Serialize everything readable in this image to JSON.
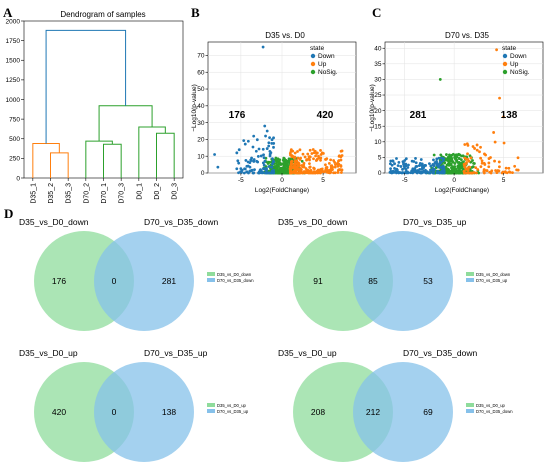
{
  "panels": {
    "a_letter": "A",
    "b_letter": "B",
    "c_letter": "C",
    "d_letter": "D"
  },
  "colors": {
    "down": "#1f77b4",
    "up": "#ff7f0e",
    "nosig": "#2ca02c",
    "dendro_blue": "#1f77b4",
    "dendro_orange": "#ff7f0e",
    "dendro_green": "#2ca02c",
    "venn_green": "#8fdc9c",
    "venn_blue": "#86c1ea"
  },
  "chart_data": [
    {
      "type": "dendrogram",
      "title": "Dendrogram of samples",
      "yticks": [
        "0",
        "250",
        "500",
        "750",
        "1000",
        "1250",
        "1500",
        "1750",
        "2000"
      ],
      "ylim": [
        0,
        2000
      ],
      "leaves": [
        "D35_1",
        "D35_2",
        "D35_3",
        "D70_2",
        "D70_1",
        "D70_3",
        "D0_1",
        "D0_2",
        "D0_3"
      ],
      "merges": [
        {
          "left": "D35_2",
          "right": "D35_3",
          "height": 320,
          "color": "orange"
        },
        {
          "left": "D35_1",
          "right": "D35_2+D35_3",
          "height": 440,
          "color": "orange"
        },
        {
          "left": "D70_1",
          "right": "D70_3",
          "height": 430,
          "color": "green"
        },
        {
          "left": "D70_2",
          "right": "D70_1+D70_3",
          "height": 470,
          "color": "green"
        },
        {
          "left": "D0_2",
          "right": "D0_3",
          "height": 570,
          "color": "green"
        },
        {
          "left": "D0_1",
          "right": "D0_2+D0_3",
          "height": 650,
          "color": "green"
        },
        {
          "left": "D70 cluster",
          "right": "D0 cluster",
          "height": 920,
          "color": "green"
        },
        {
          "left": "D35 cluster",
          "right": "D70+D0 cluster",
          "height": 1880,
          "color": "blue"
        }
      ]
    },
    {
      "type": "scatter",
      "title": "D35 vs. D0",
      "xlabel": "Log2(FoldChange)",
      "ylabel": "−Log10(p-value)",
      "xlim": [
        -9,
        9
      ],
      "ylim": [
        0,
        78
      ],
      "xticks": [
        "-5",
        "0",
        "5"
      ],
      "yticks": [
        "0",
        "10",
        "20",
        "30",
        "40",
        "50",
        "60",
        "70"
      ],
      "legend_title": "state",
      "legend": [
        "Down",
        "Up",
        "NoSig."
      ],
      "down_count": "176",
      "up_count": "420",
      "highlighted_points": [
        {
          "x": -2.3,
          "y": 75,
          "state": "Down"
        },
        {
          "x": -8.2,
          "y": 11,
          "state": "Down"
        },
        {
          "x": -7.8,
          "y": 3.5,
          "state": "Down"
        },
        {
          "x": -2.1,
          "y": 28,
          "state": "Down"
        },
        {
          "x": -1.8,
          "y": 25,
          "state": "Down"
        },
        {
          "x": -2.0,
          "y": 22,
          "state": "Down"
        },
        {
          "x": -1.6,
          "y": 18,
          "state": "Down"
        },
        {
          "x": 3.8,
          "y": 14,
          "state": "Up"
        },
        {
          "x": 4.5,
          "y": 9,
          "state": "Up"
        },
        {
          "x": 6.5,
          "y": 5,
          "state": "Up"
        }
      ]
    },
    {
      "type": "scatter",
      "title": "D70 vs. D35",
      "xlabel": "Log2(FoldChange)",
      "ylabel": "−Log10(p-value)",
      "xlim": [
        -7,
        9
      ],
      "ylim": [
        0,
        42
      ],
      "xticks": [
        "-5",
        "0",
        "5"
      ],
      "yticks": [
        "0",
        "5",
        "10",
        "15",
        "20",
        "25",
        "30",
        "35",
        "40"
      ],
      "legend_title": "state",
      "legend": [
        "Down",
        "Up",
        "NoSig."
      ],
      "down_count": "281",
      "up_count": "138",
      "highlighted_points": [
        {
          "x": 4.3,
          "y": 39.5,
          "state": "Up"
        },
        {
          "x": -1.4,
          "y": 30,
          "state": "NoSig."
        },
        {
          "x": 4.6,
          "y": 24,
          "state": "Up"
        },
        {
          "x": 5.0,
          "y": 18,
          "state": "Up"
        },
        {
          "x": 4.0,
          "y": 13,
          "state": "Up"
        },
        {
          "x": -5.0,
          "y": 4,
          "state": "Down"
        },
        {
          "x": -2.5,
          "y": 3,
          "state": "Down"
        }
      ]
    },
    {
      "type": "venn",
      "left_label": "D35_vs_D0_down",
      "right_label": "D70_vs_D35_down",
      "left_only": "176",
      "both": "0",
      "right_only": "281",
      "legend": [
        "D35_vs_D0_down",
        "D70_vs_D35_down"
      ]
    },
    {
      "type": "venn",
      "left_label": "D35_vs_D0_down",
      "right_label": "D70_vs_D35_up",
      "left_only": "91",
      "both": "85",
      "right_only": "53",
      "legend": [
        "D35_vs_D0_down",
        "D70_vs_D35_up"
      ]
    },
    {
      "type": "venn",
      "left_label": "D35_vs_D0_up",
      "right_label": "D70_vs_D35_up",
      "left_only": "420",
      "both": "0",
      "right_only": "138",
      "legend": [
        "D35_vs_D0_up",
        "D70_vs_D35_up"
      ]
    },
    {
      "type": "venn",
      "left_label": "D35_vs_D0_up",
      "right_label": "D70_vs_D35_down",
      "left_only": "208",
      "both": "212",
      "right_only": "69",
      "legend": [
        "D35_vs_D0_up",
        "D70_vs_D35_down"
      ]
    }
  ]
}
